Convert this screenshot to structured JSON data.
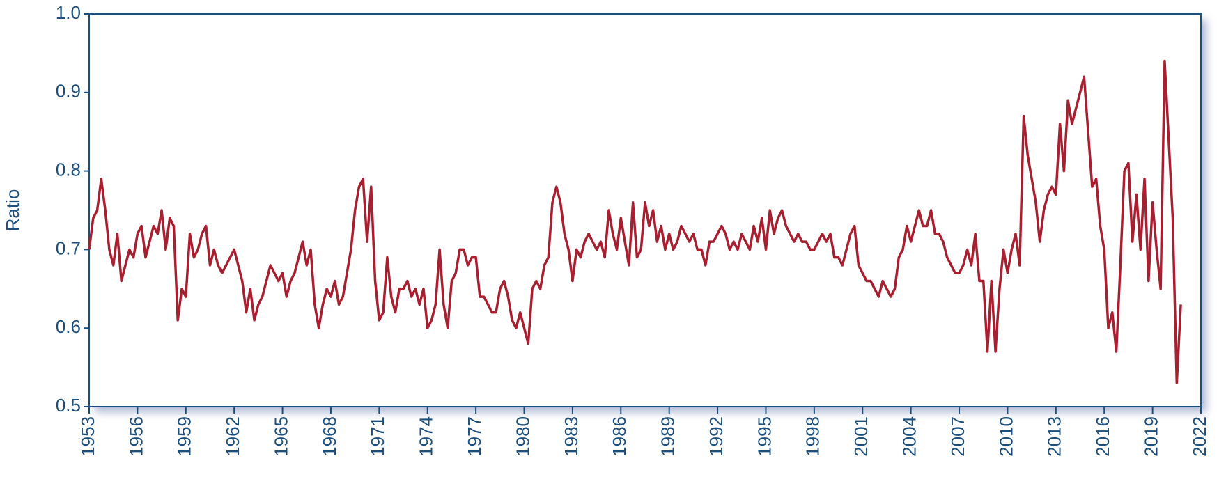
{
  "chart_data": {
    "type": "line",
    "y_label": "Ratio",
    "color": "#a81f30",
    "xlim": [
      1953,
      2022
    ],
    "xticks": [
      1953,
      1956,
      1959,
      1962,
      1965,
      1968,
      1971,
      1974,
      1977,
      1980,
      1983,
      1986,
      1989,
      1992,
      1995,
      1998,
      2001,
      2004,
      2007,
      2010,
      2013,
      2016,
      2019,
      2022
    ],
    "ylim": [
      0.5,
      1.0
    ],
    "yticks": [
      0.5,
      0.6,
      0.7,
      0.8,
      0.9,
      {
        "value": 1.0,
        "label": "1.0"
      }
    ],
    "x": [
      1953,
      1953.25,
      1953.5,
      1953.75,
      1954,
      1954.25,
      1954.5,
      1954.75,
      1955,
      1955.25,
      1955.5,
      1955.75,
      1956,
      1956.25,
      1956.5,
      1956.75,
      1957,
      1957.25,
      1957.5,
      1957.75,
      1958,
      1958.25,
      1958.5,
      1958.75,
      1959,
      1959.25,
      1959.5,
      1959.75,
      1960,
      1960.25,
      1960.5,
      1960.75,
      1961,
      1961.25,
      1961.5,
      1961.75,
      1962,
      1962.25,
      1962.5,
      1962.75,
      1963,
      1963.25,
      1963.5,
      1963.75,
      1964,
      1964.25,
      1964.5,
      1964.75,
      1965,
      1965.25,
      1965.5,
      1965.75,
      1966,
      1966.25,
      1966.5,
      1966.75,
      1967,
      1967.25,
      1967.5,
      1967.75,
      1968,
      1968.25,
      1968.5,
      1968.75,
      1969,
      1969.25,
      1969.5,
      1969.75,
      1970,
      1970.25,
      1970.5,
      1970.75,
      1971,
      1971.25,
      1971.5,
      1971.75,
      1972,
      1972.25,
      1972.5,
      1972.75,
      1973,
      1973.25,
      1973.5,
      1973.75,
      1974,
      1974.25,
      1974.5,
      1974.75,
      1975,
      1975.25,
      1975.5,
      1975.75,
      1976,
      1976.25,
      1976.5,
      1976.75,
      1977,
      1977.25,
      1977.5,
      1977.75,
      1978,
      1978.25,
      1978.5,
      1978.75,
      1979,
      1979.25,
      1979.5,
      1979.75,
      1980,
      1980.25,
      1980.5,
      1980.75,
      1981,
      1981.25,
      1981.5,
      1981.75,
      1982,
      1982.25,
      1982.5,
      1982.75,
      1983,
      1983.25,
      1983.5,
      1983.75,
      1984,
      1984.25,
      1984.5,
      1984.75,
      1985,
      1985.25,
      1985.5,
      1985.75,
      1986,
      1986.25,
      1986.5,
      1986.75,
      1987,
      1987.25,
      1987.5,
      1987.75,
      1988,
      1988.25,
      1988.5,
      1988.75,
      1989,
      1989.25,
      1989.5,
      1989.75,
      1990,
      1990.25,
      1990.5,
      1990.75,
      1991,
      1991.25,
      1991.5,
      1991.75,
      1992,
      1992.25,
      1992.5,
      1992.75,
      1993,
      1993.25,
      1993.5,
      1993.75,
      1994,
      1994.25,
      1994.5,
      1994.75,
      1995,
      1995.25,
      1995.5,
      1995.75,
      1996,
      1996.25,
      1996.5,
      1996.75,
      1997,
      1997.25,
      1997.5,
      1997.75,
      1998,
      1998.25,
      1998.5,
      1998.75,
      1999,
      1999.25,
      1999.5,
      1999.75,
      2000,
      2000.25,
      2000.5,
      2000.75,
      2001,
      2001.25,
      2001.5,
      2001.75,
      2002,
      2002.25,
      2002.5,
      2002.75,
      2003,
      2003.25,
      2003.5,
      2003.75,
      2004,
      2004.25,
      2004.5,
      2004.75,
      2005,
      2005.25,
      2005.5,
      2005.75,
      2006,
      2006.25,
      2006.5,
      2006.75,
      2007,
      2007.25,
      2007.5,
      2007.75,
      2008,
      2008.25,
      2008.5,
      2008.75,
      2009,
      2009.25,
      2009.5,
      2009.75,
      2010,
      2010.25,
      2010.5,
      2010.75,
      2011,
      2011.25,
      2011.5,
      2011.75,
      2012,
      2012.25,
      2012.5,
      2012.75,
      2013,
      2013.25,
      2013.5,
      2013.75,
      2014,
      2014.25,
      2014.5,
      2014.75,
      2015,
      2015.25,
      2015.5,
      2015.75,
      2016,
      2016.25,
      2016.5,
      2016.75,
      2017,
      2017.25,
      2017.5,
      2017.75,
      2018,
      2018.25,
      2018.5,
      2018.75,
      2019,
      2019.25,
      2019.5,
      2019.75,
      2020,
      2020.25,
      2020.5,
      2020.75
    ],
    "values": [
      0.7,
      0.74,
      0.75,
      0.79,
      0.75,
      0.7,
      0.68,
      0.72,
      0.66,
      0.68,
      0.7,
      0.69,
      0.72,
      0.73,
      0.69,
      0.71,
      0.73,
      0.72,
      0.75,
      0.7,
      0.74,
      0.73,
      0.61,
      0.65,
      0.64,
      0.72,
      0.69,
      0.7,
      0.72,
      0.73,
      0.68,
      0.7,
      0.68,
      0.67,
      0.68,
      0.69,
      0.7,
      0.68,
      0.66,
      0.62,
      0.65,
      0.61,
      0.63,
      0.64,
      0.66,
      0.68,
      0.67,
      0.66,
      0.67,
      0.64,
      0.66,
      0.67,
      0.69,
      0.71,
      0.68,
      0.7,
      0.63,
      0.6,
      0.63,
      0.65,
      0.64,
      0.66,
      0.63,
      0.64,
      0.67,
      0.7,
      0.75,
      0.78,
      0.79,
      0.71,
      0.78,
      0.66,
      0.61,
      0.62,
      0.69,
      0.64,
      0.62,
      0.65,
      0.65,
      0.66,
      0.64,
      0.65,
      0.63,
      0.65,
      0.6,
      0.61,
      0.63,
      0.7,
      0.63,
      0.6,
      0.66,
      0.67,
      0.7,
      0.7,
      0.68,
      0.69,
      0.69,
      0.64,
      0.64,
      0.63,
      0.62,
      0.62,
      0.65,
      0.66,
      0.64,
      0.61,
      0.6,
      0.62,
      0.6,
      0.58,
      0.65,
      0.66,
      0.65,
      0.68,
      0.69,
      0.76,
      0.78,
      0.76,
      0.72,
      0.7,
      0.66,
      0.7,
      0.69,
      0.71,
      0.72,
      0.71,
      0.7,
      0.71,
      0.69,
      0.75,
      0.72,
      0.7,
      0.74,
      0.71,
      0.68,
      0.76,
      0.69,
      0.7,
      0.76,
      0.73,
      0.75,
      0.71,
      0.73,
      0.7,
      0.72,
      0.7,
      0.71,
      0.73,
      0.72,
      0.71,
      0.72,
      0.7,
      0.7,
      0.68,
      0.71,
      0.71,
      0.72,
      0.73,
      0.72,
      0.7,
      0.71,
      0.7,
      0.72,
      0.71,
      0.7,
      0.73,
      0.71,
      0.74,
      0.7,
      0.75,
      0.72,
      0.74,
      0.75,
      0.73,
      0.72,
      0.71,
      0.72,
      0.71,
      0.71,
      0.7,
      0.7,
      0.71,
      0.72,
      0.71,
      0.72,
      0.69,
      0.69,
      0.68,
      0.7,
      0.72,
      0.73,
      0.68,
      0.67,
      0.66,
      0.66,
      0.65,
      0.64,
      0.66,
      0.65,
      0.64,
      0.65,
      0.69,
      0.7,
      0.73,
      0.71,
      0.73,
      0.75,
      0.73,
      0.73,
      0.75,
      0.72,
      0.72,
      0.71,
      0.69,
      0.68,
      0.67,
      0.67,
      0.68,
      0.7,
      0.68,
      0.72,
      0.66,
      0.66,
      0.57,
      0.66,
      0.57,
      0.65,
      0.7,
      0.67,
      0.7,
      0.72,
      0.68,
      0.87,
      0.82,
      0.79,
      0.76,
      0.71,
      0.75,
      0.77,
      0.78,
      0.77,
      0.86,
      0.8,
      0.89,
      0.86,
      0.88,
      0.9,
      0.92,
      0.85,
      0.78,
      0.79,
      0.73,
      0.7,
      0.6,
      0.62,
      0.57,
      0.68,
      0.8,
      0.81,
      0.71,
      0.77,
      0.7,
      0.79,
      0.66,
      0.76,
      0.7,
      0.65,
      0.94,
      0.84,
      0.74,
      0.53,
      0.63
    ]
  }
}
